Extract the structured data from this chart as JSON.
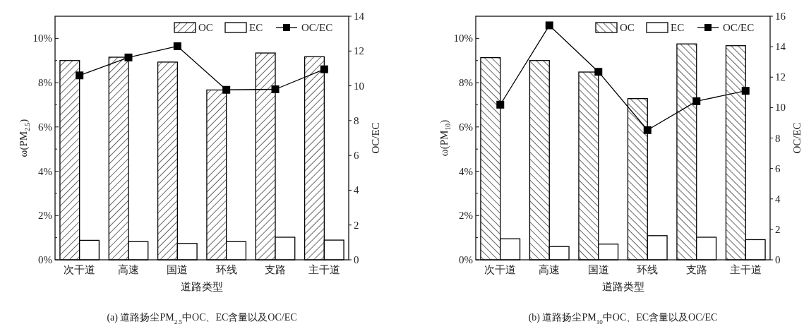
{
  "chart_data": [
    {
      "type": "bar",
      "categories": [
        "次干道",
        "高速",
        "国道",
        "环线",
        "支路",
        "主干道"
      ],
      "xlabel": "道路类型",
      "ylabel": "ω(PM$_{2.5}$)",
      "y2label": "OC/EC",
      "annotations": [
        "(a) 道路扬尘PM$_{2.5}$中OC、EC含量以及OC/EC"
      ],
      "ylim": [
        0,
        11
      ],
      "yticks": [
        {
          "value": 0,
          "label": "0%"
        },
        {
          "value": 1,
          "label": null
        },
        {
          "value": 2,
          "label": "2%"
        },
        {
          "value": 3,
          "label": null
        },
        {
          "value": 4,
          "label": "4%"
        },
        {
          "value": 5,
          "label": null
        },
        {
          "value": 6,
          "label": "6%"
        },
        {
          "value": 7,
          "label": null
        },
        {
          "value": 8,
          "label": "8%"
        },
        {
          "value": 9,
          "label": null
        },
        {
          "value": 10,
          "label": "10%"
        }
      ],
      "y2lim": [
        0,
        14
      ],
      "y2ticks": [
        0,
        2,
        4,
        6,
        8,
        10,
        12,
        14
      ],
      "legend": "top right",
      "marker": "square",
      "series": [
        {
          "name": "OC",
          "color": "#000000",
          "values": [
            9.0,
            9.15,
            8.93,
            7.67,
            9.34,
            9.17
          ]
        },
        {
          "name": "EC",
          "color": "#ffffff",
          "values": [
            0.88,
            0.82,
            0.74,
            0.82,
            1.02,
            0.89
          ]
        },
        {
          "name": "OC/EC",
          "type": "line",
          "axis": "y2",
          "color": "#000000",
          "values": [
            10.6,
            11.63,
            12.28,
            9.77,
            9.8,
            10.95
          ]
        }
      ]
    },
    {
      "type": "bar",
      "categories": [
        "次干道",
        "高速",
        "国道",
        "环线",
        "支路",
        "主干道"
      ],
      "xlabel": "道路类型",
      "ylabel": "ω(PM$_{10}$)",
      "y2label": "OC/EC",
      "annotations": [
        "(b) 道路扬尘PM$_{10}$中OC、EC含量以及OC/EC"
      ],
      "ylim": [
        0,
        11
      ],
      "yticks": [
        {
          "value": 0,
          "label": "0%"
        },
        {
          "value": 1,
          "label": null
        },
        {
          "value": 2,
          "label": "2%"
        },
        {
          "value": 3,
          "label": null
        },
        {
          "value": 4,
          "label": "4%"
        },
        {
          "value": 5,
          "label": null
        },
        {
          "value": 6,
          "label": "6%"
        },
        {
          "value": 7,
          "label": null
        },
        {
          "value": 8,
          "label": "8%"
        },
        {
          "value": 9,
          "label": null
        },
        {
          "value": 10,
          "label": "10%"
        }
      ],
      "y2lim": [
        0,
        16
      ],
      "y2ticks": [
        0,
        2,
        4,
        6,
        8,
        10,
        12,
        14,
        16
      ],
      "legend": "top right",
      "marker": "square",
      "series": [
        {
          "name": "OC",
          "color": "#000000",
          "values": [
            9.13,
            9.0,
            8.48,
            7.28,
            9.75,
            9.67
          ]
        },
        {
          "name": "EC",
          "color": "#ffffff",
          "values": [
            0.95,
            0.6,
            0.71,
            1.09,
            1.02,
            0.91
          ]
        },
        {
          "name": "OC/EC",
          "type": "line",
          "axis": "y2",
          "color": "#000000",
          "values": [
            10.19,
            15.4,
            12.35,
            8.52,
            10.42,
            11.1
          ]
        }
      ]
    }
  ]
}
